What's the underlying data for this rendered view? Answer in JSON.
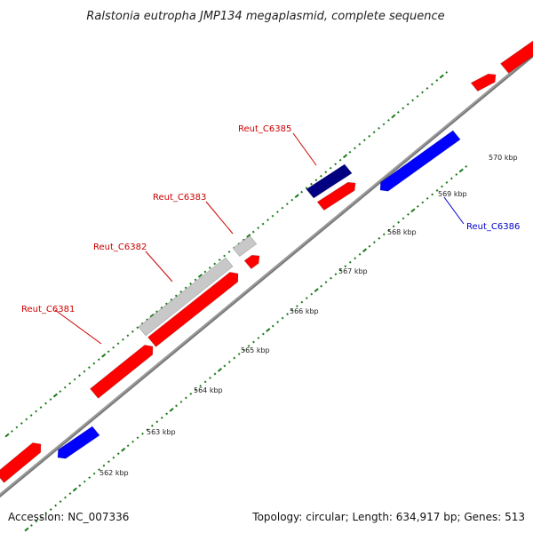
{
  "title": "Ralstonia eutropha JMP134 megaplasmid, complete sequence",
  "footer": {
    "accession": "Accession: NC_007336",
    "summary": "Topology: circular; Length: 634,917 bp; Genes: 513"
  },
  "colors": {
    "forward_gene": "#ff0000",
    "reverse_gene": "#0000ff",
    "highlight_gene": "#000080",
    "pseudo_gene": "#c8c8c8",
    "tick": "#1a7a1a",
    "backbone": "#808080",
    "label_red": "#cc0000",
    "label_blue": "#0000cc"
  },
  "ticks": [
    {
      "label": "562 kbp"
    },
    {
      "label": "563 kbp"
    },
    {
      "label": "564 kbp"
    },
    {
      "label": "565 kbp"
    },
    {
      "label": "566 kbp"
    },
    {
      "label": "567 kbp"
    },
    {
      "label": "568 kbp"
    },
    {
      "label": "569 kbp"
    },
    {
      "label": "570 kbp"
    }
  ],
  "gene_labels": [
    {
      "name": "Reut_C6381",
      "color": "red"
    },
    {
      "name": "Reut_C6382",
      "color": "red"
    },
    {
      "name": "Reut_C6383",
      "color": "red"
    },
    {
      "name": "Reut_C6385",
      "color": "red"
    },
    {
      "name": "Reut_C6386",
      "color": "blue"
    }
  ]
}
